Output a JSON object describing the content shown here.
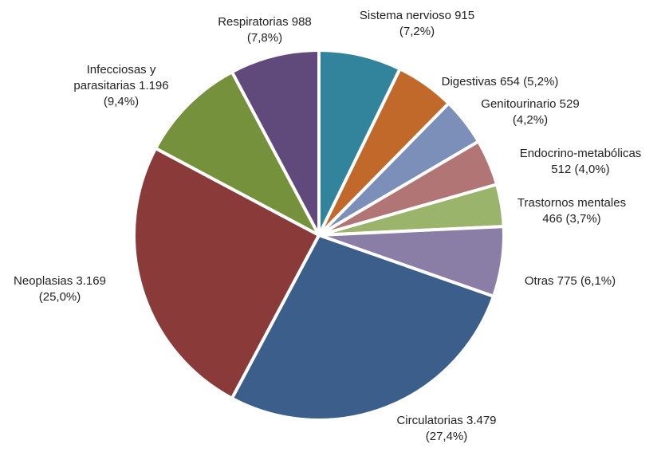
{
  "chart_data": {
    "type": "pie",
    "categories": [
      "Sistema nervioso",
      "Digestivas",
      "Genitourinario",
      "Endocrino-metabólicas",
      "Trastornos mentales",
      "Otras",
      "Circulatorias",
      "Neoplasias",
      "Infecciosas y parasitarias",
      "Respiratorias"
    ],
    "values": [
      915,
      654,
      529,
      512,
      466,
      775,
      3479,
      3169,
      1196,
      988
    ],
    "value_labels": [
      "915",
      "654",
      "529",
      "512",
      "466",
      "775",
      "3.479",
      "3.169",
      "1.196",
      "988"
    ],
    "percent_labels": [
      "(7,2%)",
      "(5,2%)",
      "(4,2%)",
      "(4,0%)",
      "(3,7%)",
      "(6,1%)",
      "(27,4%)",
      "(25,0%)",
      "(9,4%)",
      "(7,8%)"
    ],
    "colors": [
      "#31849b",
      "#c0692b",
      "#7b8fb8",
      "#b27575",
      "#9bb46b",
      "#8a7ea6",
      "#3b5e8b",
      "#8b3a3a",
      "#76913c",
      "#5f4a7b"
    ]
  }
}
